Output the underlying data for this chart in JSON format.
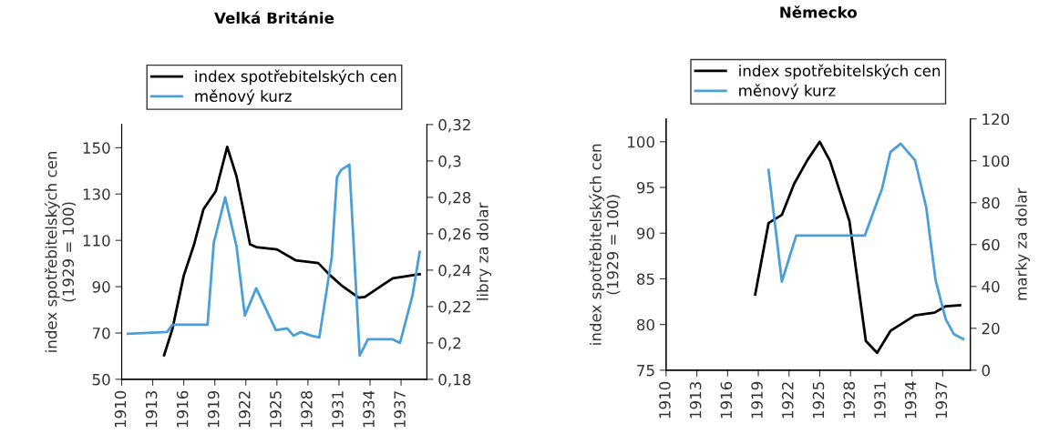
{
  "chart_data": [
    {
      "type": "line",
      "title": "Velká Británie",
      "ylabel": "index spotřebitelských cen\n(1929 = 100)",
      "y2label": "libry za dolar",
      "legend": "top",
      "grid": false,
      "xlim": [
        1910,
        1939.5
      ],
      "xticks": [
        1910,
        1913,
        1916,
        1919,
        1922,
        1925,
        1928,
        1931,
        1934,
        1937
      ],
      "ylim": [
        50,
        160
      ],
      "yticks": [
        50,
        70,
        90,
        110,
        130,
        150
      ],
      "y2lim": [
        0.18,
        0.32
      ],
      "y2ticks": [
        {
          "value": 0.18,
          "label": "0,18"
        },
        {
          "value": 0.2,
          "label": "0,2"
        },
        {
          "value": 0.22,
          "label": "0,22"
        },
        {
          "value": 0.24,
          "label": "0,24"
        },
        {
          "value": 0.26,
          "label": "0,26"
        },
        {
          "value": 0.28,
          "label": "0,28"
        },
        {
          "value": 0.3,
          "label": "0,3"
        },
        {
          "value": 0.32,
          "label": "0,32"
        }
      ],
      "series": [
        {
          "name": "index spotřebitelských cen",
          "color": "#000000",
          "x": [
            1914.1,
            1914.9,
            1916.0,
            1917.0,
            1917.9,
            1919.1,
            1920.2,
            1921.1,
            1921.7,
            1922.4,
            1923.0,
            1925.0,
            1926.8,
            1929.0,
            1930.1,
            1931.2,
            1932.9,
            1933.5,
            1935.2,
            1936.2,
            1938.8
          ],
          "values": [
            60.4,
            71.7,
            94.8,
            108.3,
            123.4,
            131.3,
            150.4,
            137.6,
            124.4,
            108.3,
            107.1,
            106.1,
            101.4,
            100.2,
            95.1,
            90.7,
            85.3,
            85.6,
            90.7,
            93.6,
            95.4
          ]
        },
        {
          "name": "měnový kurz",
          "color": "#4a9fd8",
          "axis": "y2",
          "x": [
            1910.6,
            1914.4,
            1914.9,
            1918.3,
            1918.9,
            1920.0,
            1921.1,
            1921.9,
            1923.0,
            1924.9,
            1926.0,
            1926.6,
            1927.3,
            1928.3,
            1929.1,
            1930.3,
            1930.8,
            1931.2,
            1932.0,
            1933.0,
            1933.8,
            1936.2,
            1936.9,
            1938.1,
            1938.8
          ],
          "values": [
            0.205,
            0.206,
            0.21,
            0.21,
            0.255,
            0.28,
            0.253,
            0.215,
            0.23,
            0.207,
            0.208,
            0.204,
            0.206,
            0.204,
            0.203,
            0.247,
            0.291,
            0.295,
            0.298,
            0.193,
            0.202,
            0.202,
            0.2,
            0.226,
            0.25
          ]
        }
      ]
    },
    {
      "type": "line",
      "title": "Německo",
      "ylabel": "index spotřebitelských cen\n(1929 = 100)",
      "y2label": "marky za dolar",
      "legend": "top",
      "grid": false,
      "xlim": [
        1910,
        1939.7
      ],
      "xticks": [
        1910,
        1913,
        1916,
        1919,
        1922,
        1925,
        1928,
        1931,
        1934,
        1937
      ],
      "ylim": [
        75,
        102.5
      ],
      "yticks": [
        75,
        80,
        85,
        90,
        95,
        100
      ],
      "y2lim": [
        0,
        120
      ],
      "y2ticks": [
        0,
        20,
        40,
        60,
        80,
        100,
        120
      ],
      "series": [
        {
          "name": "index spotřebitelských cen",
          "color": "#000000",
          "x": [
            1918.7,
            1919.3,
            1920.0,
            1921.3,
            1922.5,
            1923.8,
            1925.0,
            1926.0,
            1927.9,
            1929.5,
            1930.6,
            1931.9,
            1934.3,
            1936.2,
            1937.3,
            1938.7
          ],
          "values": [
            83.3,
            86.9,
            91.1,
            92.0,
            95.4,
            98.0,
            100.0,
            97.9,
            91.3,
            78.2,
            76.9,
            79.3,
            81.0,
            81.3,
            82.0,
            82.1
          ]
        },
        {
          "name": "měnový kurz",
          "color": "#4a9fd8",
          "axis": "y2",
          "x": [
            1920.0,
            1921.3,
            1922.7,
            1929.4,
            1931.1,
            1931.9,
            1932.9,
            1934.3,
            1935.4,
            1936.3,
            1937.3,
            1938.1,
            1939.0
          ],
          "values": [
            95.6,
            42.3,
            64.3,
            64.3,
            87.0,
            104.2,
            108.2,
            100.3,
            77.6,
            43.1,
            24.3,
            17.2,
            14.9
          ]
        }
      ]
    }
  ]
}
